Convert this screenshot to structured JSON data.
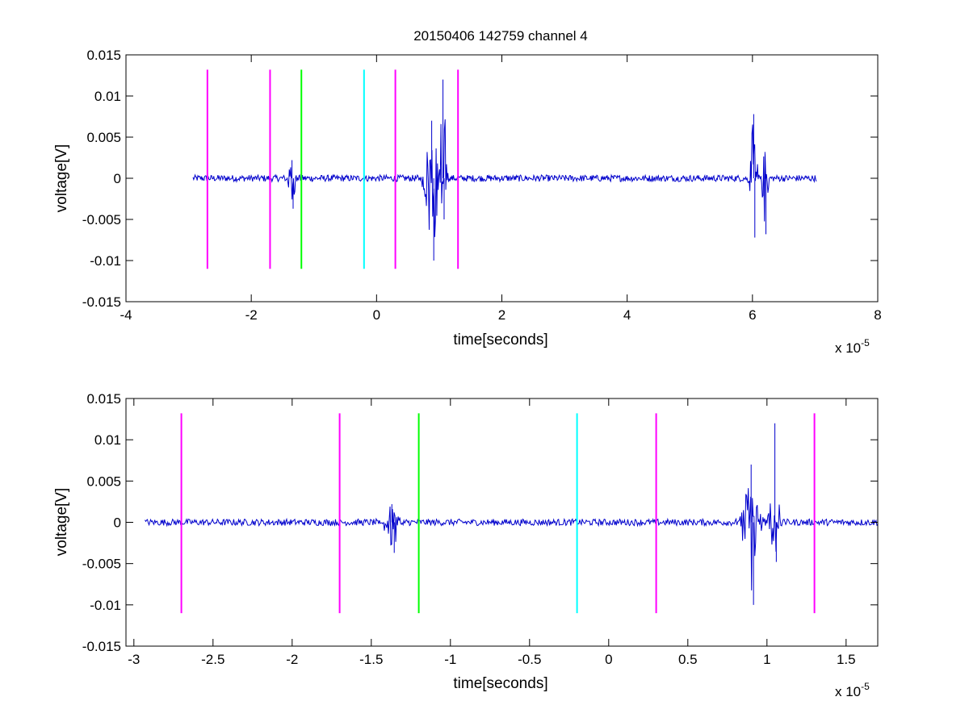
{
  "chart_data": [
    {
      "type": "line",
      "title": "20150406 142759 channel 4",
      "xlabel": "time[seconds]",
      "ylabel": "voltage[V]",
      "x_multiplier_label": "x 10",
      "x_multiplier_exp": "-5",
      "xlim": [
        -4,
        8
      ],
      "ylim": [
        -0.015,
        0.015
      ],
      "xticks": [
        -4,
        -2,
        0,
        2,
        4,
        6,
        8
      ],
      "xtick_labels": [
        "-4",
        "-2",
        "0",
        "2",
        "4",
        "6",
        "8"
      ],
      "yticks": [
        -0.015,
        -0.01,
        -0.005,
        0,
        0.005,
        0.01,
        0.015
      ],
      "ytick_labels": [
        "-0.015",
        "-0.01",
        "-0.005",
        "0",
        "0.005",
        "0.01",
        "0.015"
      ],
      "grid": false,
      "signal": {
        "color": "#0000cc",
        "x_range": [
          -2.93,
          7.02
        ],
        "noise_amplitude": 0.0004,
        "bursts": [
          {
            "center": -1.35,
            "width": 0.12,
            "min": -0.0037,
            "max": 0.0022
          },
          {
            "center": 0.88,
            "width": 0.22,
            "min": -0.01,
            "max": 0.007
          },
          {
            "center": 1.06,
            "width": 0.12,
            "min": -0.005,
            "max": 0.012
          },
          {
            "center": 6.02,
            "width": 0.12,
            "min": -0.0072,
            "max": 0.0078
          },
          {
            "center": 6.2,
            "width": 0.1,
            "min": -0.0068,
            "max": 0.0032
          }
        ]
      },
      "markers": [
        {
          "x": -2.7,
          "color": "#ff00ff"
        },
        {
          "x": -1.7,
          "color": "#ff00ff"
        },
        {
          "x": -1.2,
          "color": "#00ff00"
        },
        {
          "x": -0.2,
          "color": "#00ffff"
        },
        {
          "x": 0.3,
          "color": "#ff00ff"
        },
        {
          "x": 1.3,
          "color": "#ff00ff"
        }
      ],
      "marker_range": [
        -0.011,
        0.0132
      ]
    },
    {
      "type": "line",
      "title": "",
      "xlabel": "time[seconds]",
      "ylabel": "voltage[V]",
      "x_multiplier_label": "x 10",
      "x_multiplier_exp": "-5",
      "xlim": [
        -3.05,
        1.7
      ],
      "ylim": [
        -0.015,
        0.015
      ],
      "xticks": [
        -3,
        -2.5,
        -2,
        -1.5,
        -1,
        -0.5,
        0,
        0.5,
        1,
        1.5
      ],
      "xtick_labels": [
        "-3",
        "-2.5",
        "-2",
        "-1.5",
        "-1",
        "-0.5",
        "0",
        "0.5",
        "1",
        "1.5"
      ],
      "yticks": [
        -0.015,
        -0.01,
        -0.005,
        0,
        0.005,
        0.01,
        0.015
      ],
      "ytick_labels": [
        "-0.015",
        "-0.01",
        "-0.005",
        "0",
        "0.005",
        "0.01",
        "0.015"
      ],
      "grid": false,
      "signal": {
        "color": "#0000cc",
        "x_range": [
          -2.93,
          1.7
        ],
        "noise_amplitude": 0.0004,
        "bursts": [
          {
            "center": -1.37,
            "width": 0.1,
            "min": -0.0037,
            "max": 0.0022
          },
          {
            "center": 0.9,
            "width": 0.1,
            "min": -0.01,
            "max": 0.007
          },
          {
            "center": 1.05,
            "width": 0.06,
            "min": -0.0048,
            "max": 0.012
          }
        ]
      },
      "markers": [
        {
          "x": -2.7,
          "color": "#ff00ff"
        },
        {
          "x": -1.7,
          "color": "#ff00ff"
        },
        {
          "x": -1.2,
          "color": "#00ff00"
        },
        {
          "x": -0.2,
          "color": "#00ffff"
        },
        {
          "x": 0.3,
          "color": "#ff00ff"
        },
        {
          "x": 1.3,
          "color": "#ff00ff"
        }
      ],
      "marker_range": [
        -0.011,
        0.0132
      ]
    }
  ]
}
